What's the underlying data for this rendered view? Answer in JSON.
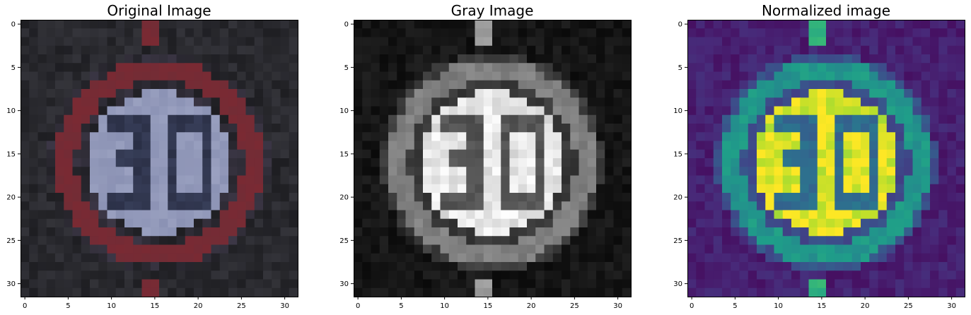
{
  "chart_data": [
    {
      "type": "heatmap",
      "title": "Original Image",
      "colormap": "rgb",
      "xlim": [
        -0.5,
        31.5
      ],
      "ylim": [
        31.5,
        -0.5
      ],
      "xticks": [
        0,
        5,
        10,
        15,
        20,
        25,
        30
      ],
      "yticks": [
        0,
        5,
        10,
        15,
        20,
        25,
        30
      ],
      "grid": false
    },
    {
      "type": "heatmap",
      "title": "Gray Image",
      "colormap": "gray",
      "xlim": [
        -0.5,
        31.5
      ],
      "ylim": [
        31.5,
        -0.5
      ],
      "xticks": [
        0,
        5,
        10,
        15,
        20,
        25,
        30
      ],
      "yticks": [
        0,
        5,
        10,
        15,
        20,
        25,
        30
      ],
      "grid": false
    },
    {
      "type": "heatmap",
      "title": "Normalized image",
      "colormap": "viridis",
      "xlim": [
        -0.5,
        31.5
      ],
      "ylim": [
        31.5,
        -0.5
      ],
      "xticks": [
        0,
        5,
        10,
        15,
        20,
        25,
        30
      ],
      "yticks": [
        0,
        5,
        10,
        15,
        20,
        25,
        30
      ],
      "grid": false
    }
  ],
  "colors": {
    "background": "#1e1e22",
    "sign_white": "#8a91b3",
    "sign_red": "#7a2a33",
    "digit_dark": "#2a2f45",
    "viridis": [
      "#440154",
      "#482878",
      "#3e4989",
      "#31688e",
      "#26828e",
      "#1f9e89",
      "#35b779",
      "#6ece58",
      "#b5de2b",
      "#fde725"
    ]
  }
}
